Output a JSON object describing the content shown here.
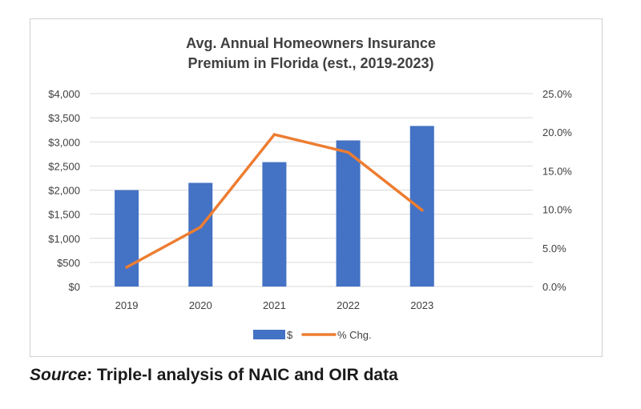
{
  "chart_data": {
    "type": "bar",
    "title_lines": [
      "Avg. Annual Homeowners Insurance",
      "Premium in Florida (est., 2019-2023)"
    ],
    "categories": [
      "2019",
      "2020",
      "2021",
      "2022",
      "2023"
    ],
    "series": [
      {
        "name": "$",
        "type": "bar",
        "axis": "left",
        "color": "#4472C4",
        "values": [
          2000,
          2150,
          2580,
          3030,
          3330
        ]
      },
      {
        "name": "% Chg.",
        "type": "line",
        "axis": "right",
        "color": "#ED7D31",
        "values": [
          2.5,
          7.7,
          19.7,
          17.4,
          9.9
        ]
      }
    ],
    "y_left": {
      "lim": [
        0,
        4000
      ],
      "ticks": [
        0,
        500,
        1000,
        1500,
        2000,
        2500,
        3000,
        3500,
        4000
      ],
      "tick_labels": [
        "$0",
        "$500",
        "$1,000",
        "$1,500",
        "$2,000",
        "$2,500",
        "$3,000",
        "$3,500",
        "$4,000"
      ]
    },
    "y_right": {
      "lim": [
        0,
        25
      ],
      "ticks": [
        0,
        5,
        10,
        15,
        20,
        25
      ],
      "tick_labels": [
        "0.0%",
        "5.0%",
        "10.0%",
        "15.0%",
        "20.0%",
        "25.0%"
      ]
    },
    "grid": true,
    "legend_position": "bottom"
  },
  "source": {
    "label": "Source",
    "text": ": Triple-I analysis of NAIC and OIR data"
  }
}
